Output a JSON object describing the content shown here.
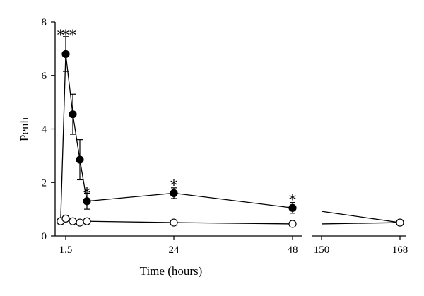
{
  "chart_data": {
    "type": "line",
    "title": "",
    "xlabel": "Time (hours)",
    "ylabel": "Penh",
    "ylim": [
      0,
      8
    ],
    "y_ticks": [
      "0",
      "2",
      "4",
      "6",
      "8"
    ],
    "x_tick_labels": [
      "1.5",
      "24",
      "48",
      "150",
      "168"
    ],
    "axis_break": {
      "x_segments": [
        [
          0.5,
          48
        ],
        [
          150,
          168
        ]
      ]
    },
    "grid": false,
    "legend": "none",
    "series": [
      {
        "marker": "filled-circle",
        "color": "#000000",
        "x": [
          0.7,
          1.5,
          2.5,
          3.5,
          4.5,
          24,
          48,
          168
        ],
        "y": [
          0.55,
          6.8,
          4.55,
          2.85,
          1.3,
          1.6,
          1.05,
          0.5
        ],
        "error": [
          0.1,
          0.65,
          0.75,
          0.75,
          0.3,
          0.2,
          0.2,
          0.05
        ]
      },
      {
        "marker": "open-circle",
        "color": "#000000",
        "x": [
          0.7,
          1.5,
          2.5,
          3.5,
          4.5,
          24,
          48,
          168
        ],
        "y": [
          0.55,
          0.65,
          0.55,
          0.5,
          0.55,
          0.5,
          0.45,
          0.5
        ],
        "error": [
          0.05,
          0.05,
          0.05,
          0.05,
          0.05,
          0.05,
          0.05,
          0.05
        ]
      }
    ],
    "annotations": [
      {
        "text": "*",
        "x": 0.7,
        "y": 7.6
      },
      {
        "text": "*",
        "x": 1.5,
        "y": 7.6
      },
      {
        "text": "*",
        "x": 2.5,
        "y": 7.6
      },
      {
        "text": "*",
        "x": 4.5,
        "y": 1.7
      },
      {
        "text": "*",
        "x": 24,
        "y": 2.0
      },
      {
        "text": "*",
        "x": 48,
        "y": 1.45
      }
    ]
  }
}
